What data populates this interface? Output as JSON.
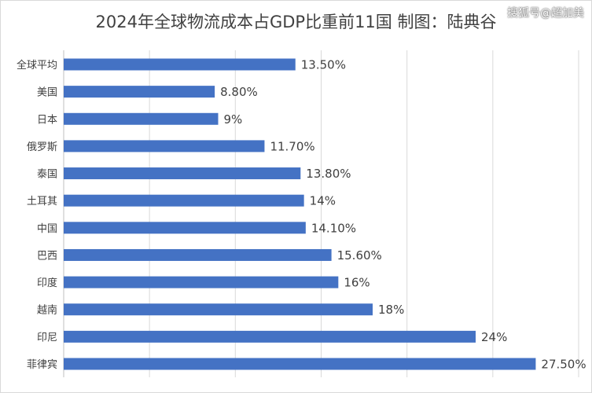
{
  "title": "2024年全球物流成本占GDP比重前11国  制图：陆典谷",
  "watermark": "搜狐号@超加美",
  "colors": {
    "bar": "#4472C4",
    "grid": "#d9d9d9",
    "text": "#404040"
  },
  "chart_data": {
    "type": "bar",
    "orientation": "horizontal",
    "title": "2024年全球物流成本占GDP比重前11国  制图：陆典谷",
    "categories": [
      "全球平均",
      "美国",
      "日本",
      "俄罗斯",
      "泰国",
      "土耳其",
      "中国",
      "巴西",
      "印度",
      "越南",
      "印尼",
      "菲律宾"
    ],
    "values": [
      13.5,
      8.8,
      9,
      11.7,
      13.8,
      14,
      14.1,
      15.6,
      16,
      18,
      24,
      27.5
    ],
    "data_labels": [
      "13.50%",
      "8.80%",
      "9%",
      "11.70%",
      "13.80%",
      "14%",
      "14.10%",
      "15.60%",
      "16%",
      "18%",
      "24%",
      "27.50%"
    ],
    "xlim": [
      0,
      30
    ],
    "x_grid_step": 5,
    "tick_labels_shown": false,
    "grid": true,
    "legend": "none"
  }
}
